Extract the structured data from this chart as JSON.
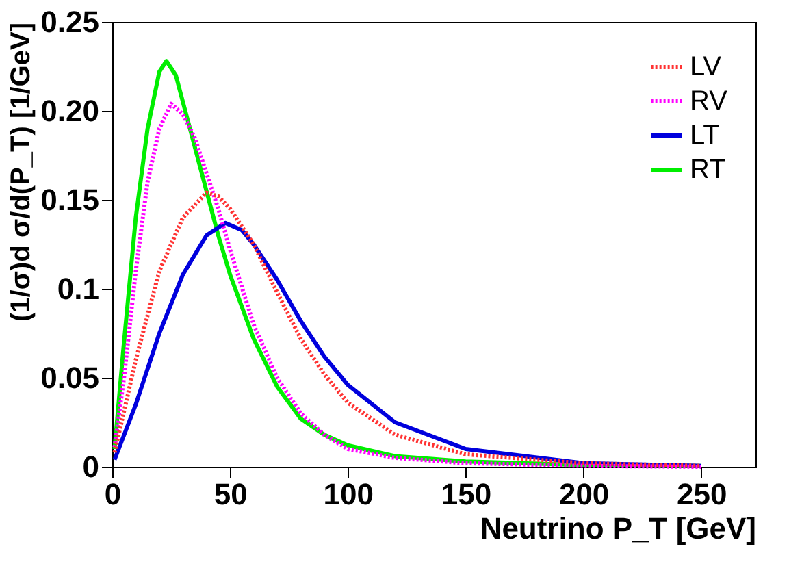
{
  "chart_data": {
    "type": "line",
    "xlabel": "Neutrino P_T [GeV]",
    "ylabel": "(1/σ)d σ/d(P_T) [1/GeV]",
    "xlim": [
      0,
      273
    ],
    "ylim": [
      0,
      0.25
    ],
    "xticks": [
      0,
      50,
      100,
      150,
      200,
      250
    ],
    "yticks": [
      0,
      0.05,
      0.1,
      0.15,
      {
        "value": 0.2,
        "label": "0.20"
      },
      0.25
    ],
    "grid": false,
    "legend": "top right",
    "marker": "none",
    "series": [
      {
        "name": "LV",
        "color": "#ff3333",
        "line_style": "dotted",
        "x": [
          1,
          10,
          20,
          30,
          40,
          45,
          50,
          60,
          70,
          80,
          90,
          100,
          120,
          150,
          200,
          250
        ],
        "values": [
          0.008,
          0.06,
          0.11,
          0.14,
          0.154,
          0.152,
          0.145,
          0.125,
          0.098,
          0.072,
          0.052,
          0.036,
          0.018,
          0.007,
          0.002,
          0.0005
        ]
      },
      {
        "name": "RV",
        "color": "#ff00ff",
        "line_style": "dotted",
        "x": [
          1,
          5,
          10,
          15,
          20,
          25,
          30,
          35,
          40,
          45,
          50,
          60,
          70,
          80,
          90,
          100,
          120,
          150,
          200,
          250
        ],
        "values": [
          0.011,
          0.05,
          0.11,
          0.16,
          0.19,
          0.204,
          0.198,
          0.185,
          0.165,
          0.145,
          0.122,
          0.08,
          0.05,
          0.03,
          0.018,
          0.01,
          0.005,
          0.002,
          0.0005,
          0
        ]
      },
      {
        "name": "LT",
        "color": "#0000dd",
        "line_style": "solid",
        "x": [
          1,
          10,
          20,
          30,
          40,
          48,
          55,
          60,
          70,
          80,
          90,
          100,
          120,
          150,
          200,
          250
        ],
        "values": [
          0.004,
          0.035,
          0.075,
          0.108,
          0.13,
          0.137,
          0.133,
          0.125,
          0.105,
          0.082,
          0.062,
          0.046,
          0.025,
          0.01,
          0.002,
          0.0005
        ]
      },
      {
        "name": "RT",
        "color": "#00ee00",
        "line_style": "solid",
        "x": [
          1,
          5,
          10,
          15,
          20,
          23,
          27,
          30,
          35,
          40,
          45,
          50,
          60,
          70,
          80,
          90,
          100,
          120,
          150,
          200,
          250
        ],
        "values": [
          0.01,
          0.07,
          0.14,
          0.19,
          0.222,
          0.228,
          0.22,
          0.205,
          0.18,
          0.155,
          0.13,
          0.108,
          0.072,
          0.045,
          0.027,
          0.018,
          0.012,
          0.006,
          0.003,
          0.001,
          0.0005
        ]
      }
    ]
  }
}
